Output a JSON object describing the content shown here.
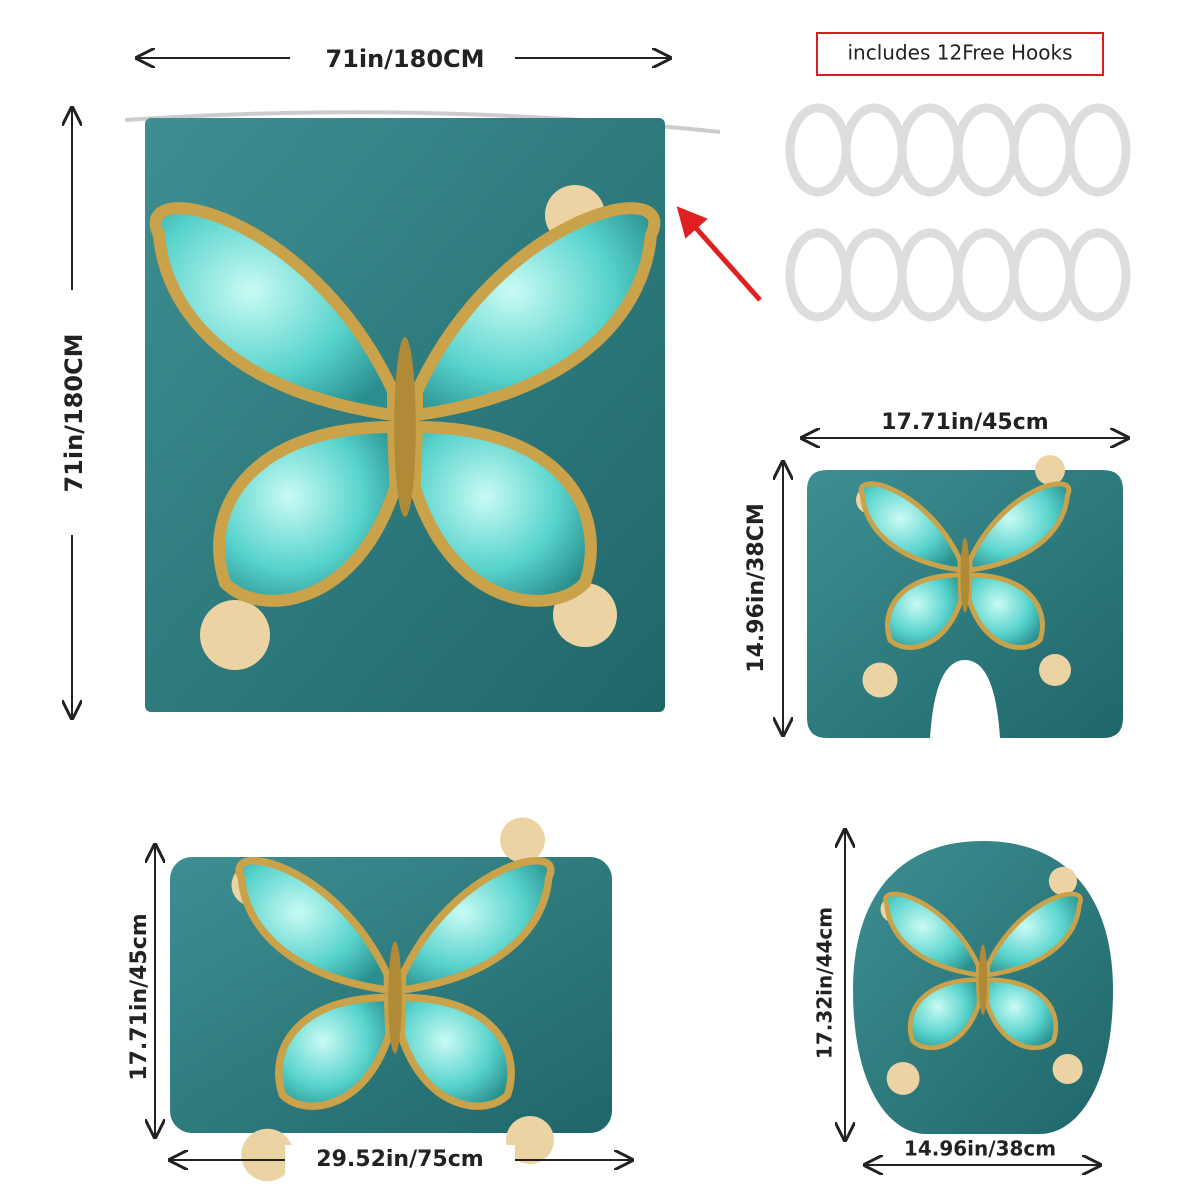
{
  "curtain": {
    "width_label": "71in/180CM",
    "height_label": "71in/180CM"
  },
  "hooks": {
    "label": "includes 12Free Hooks"
  },
  "contour_mat": {
    "width_label": "17.71in/45cm",
    "height_label": "14.96in/38CM"
  },
  "bath_mat": {
    "height_label": "17.71in/45cm",
    "width_label": "29.52in/75cm"
  },
  "lid_cover": {
    "height_label": "17.32in/44cm",
    "width_label": "14.96in/38cm"
  }
}
